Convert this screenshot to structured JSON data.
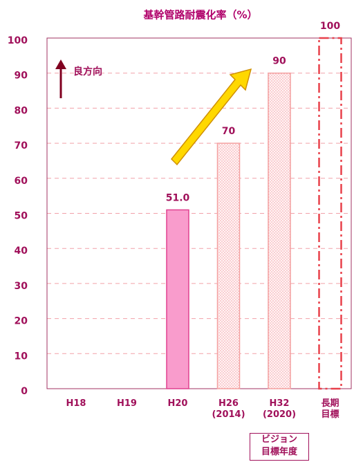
{
  "chart_data": {
    "type": "bar",
    "title": "基幹管路耐震化率（%）",
    "categories": [
      "H18",
      "H19",
      "H20",
      "H26\n(2014)",
      "H32\n(2020)",
      "長期\n目標"
    ],
    "values": [
      null,
      null,
      51.0,
      70,
      90,
      100
    ],
    "value_labels": [
      null,
      null,
      "51.0",
      "70",
      "90",
      "100"
    ],
    "bar_styles": [
      "solid",
      "solid",
      "solid",
      "dotted",
      "dotted",
      "dashed"
    ],
    "color": "#f99ccc",
    "ylim": [
      0,
      100
    ],
    "yticks": [
      0,
      10,
      20,
      30,
      40,
      50,
      60,
      70,
      80,
      90,
      100
    ],
    "grid": true,
    "annotations": [
      "良方向",
      "ビジョン\n目標年度"
    ]
  }
}
